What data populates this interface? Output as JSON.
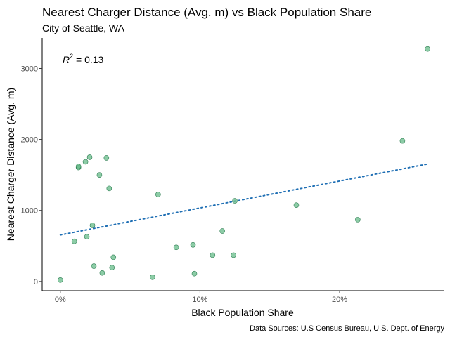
{
  "chart_data": {
    "type": "scatter",
    "title": "Nearest Charger Distance (Avg. m) vs Black Population Share",
    "subtitle": "City of Seattle, WA",
    "xlabel": "Black Population Share",
    "ylabel": "Nearest Charger Distance (Avg. m)",
    "caption": "Data Sources: U.S Census Bureau, U.S. Dept. of Energy",
    "annotation": {
      "prefix": "R",
      "superscript": "2",
      "value": " = 0.13"
    },
    "xlim": [
      -0.013,
      0.275
    ],
    "ylim": [
      -130,
      3430
    ],
    "x_ticks": [
      {
        "value": 0.0,
        "label": "0%"
      },
      {
        "value": 0.1,
        "label": "10%"
      },
      {
        "value": 0.2,
        "label": "20%"
      }
    ],
    "y_ticks": [
      {
        "value": 0,
        "label": "0"
      },
      {
        "value": 1000,
        "label": "1000"
      },
      {
        "value": 2000,
        "label": "2000"
      },
      {
        "value": 3000,
        "label": "3000"
      }
    ],
    "grid": false,
    "point_color": "#66bb88",
    "point_stroke": "#2e7d52",
    "trend_color": "#1f6fb4",
    "trend_line": {
      "x": [
        0.0,
        0.262
      ],
      "y": [
        655,
        1650
      ],
      "style": "dotted"
    },
    "points": [
      {
        "x": 0.0,
        "y": 20
      },
      {
        "x": 0.01,
        "y": 565
      },
      {
        "x": 0.013,
        "y": 1605
      },
      {
        "x": 0.013,
        "y": 1620
      },
      {
        "x": 0.018,
        "y": 1685
      },
      {
        "x": 0.019,
        "y": 630
      },
      {
        "x": 0.021,
        "y": 1750
      },
      {
        "x": 0.023,
        "y": 790
      },
      {
        "x": 0.024,
        "y": 215
      },
      {
        "x": 0.028,
        "y": 1500
      },
      {
        "x": 0.03,
        "y": 120
      },
      {
        "x": 0.033,
        "y": 1740
      },
      {
        "x": 0.035,
        "y": 1310
      },
      {
        "x": 0.037,
        "y": 195
      },
      {
        "x": 0.038,
        "y": 340
      },
      {
        "x": 0.066,
        "y": 60
      },
      {
        "x": 0.07,
        "y": 1225
      },
      {
        "x": 0.083,
        "y": 480
      },
      {
        "x": 0.095,
        "y": 515
      },
      {
        "x": 0.096,
        "y": 110
      },
      {
        "x": 0.109,
        "y": 370
      },
      {
        "x": 0.116,
        "y": 710
      },
      {
        "x": 0.124,
        "y": 370
      },
      {
        "x": 0.125,
        "y": 1135
      },
      {
        "x": 0.169,
        "y": 1075
      },
      {
        "x": 0.213,
        "y": 870
      },
      {
        "x": 0.245,
        "y": 1980
      },
      {
        "x": 0.263,
        "y": 3275
      }
    ]
  }
}
